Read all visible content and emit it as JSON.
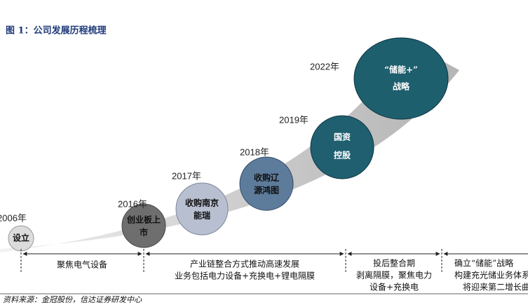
{
  "header": {
    "title": "图 1：公司发展历程梳理"
  },
  "milestones": [
    {
      "year": "2006年",
      "label": [
        "设立"
      ]
    },
    {
      "year": "2016年",
      "label": [
        "创业板上",
        "市"
      ]
    },
    {
      "year": "2017年",
      "label": [
        "收购南京",
        "能瑞"
      ]
    },
    {
      "year": "2018年",
      "label": [
        "收购辽",
        "源鸿图"
      ]
    },
    {
      "year": "2019年",
      "label": [
        "国资",
        "控股"
      ]
    },
    {
      "year": "2022年",
      "label": [
        "“储能+”",
        "战略"
      ]
    }
  ],
  "phases": [
    {
      "lines": [
        "聚焦电气设备"
      ]
    },
    {
      "lines": [
        "产业链整合方式推动高速发展",
        "业务包括电力设备+充换电+锂电隔膜"
      ]
    },
    {
      "lines": [
        "投后整合期",
        "剥离隔膜，聚焦电力",
        "设备+充换电"
      ]
    },
    {
      "lines": [
        "确立“储能”战略",
        "构建充光储业务体系",
        "将迎来第二增长曲线"
      ]
    }
  ],
  "footer": {
    "source": "资料来源：金冠股份，信达证券研发中心"
  }
}
